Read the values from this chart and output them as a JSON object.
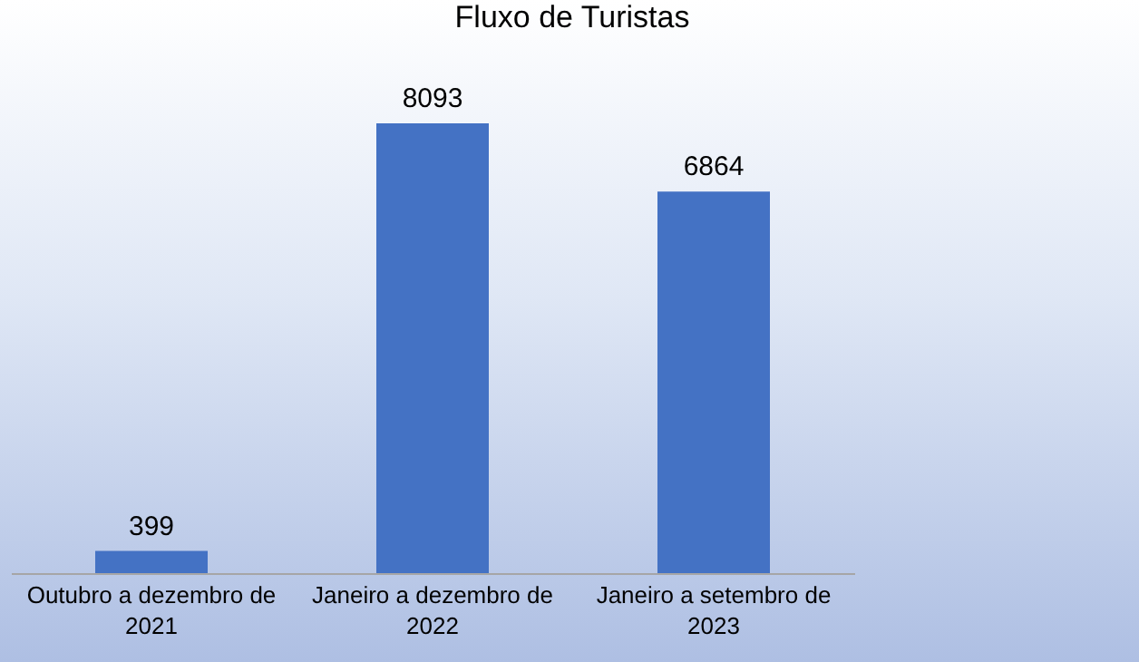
{
  "chart_data": {
    "type": "bar",
    "title": "Fluxo de Turistas",
    "categories": [
      "Outubro a dezembro de 2021",
      "Janeiro a dezembro de 2022",
      "Janeiro a setembro de 2023"
    ],
    "values": [
      399,
      8093,
      6864
    ],
    "color": "#4472c4",
    "data_labels": true,
    "tick_labels": "x"
  }
}
